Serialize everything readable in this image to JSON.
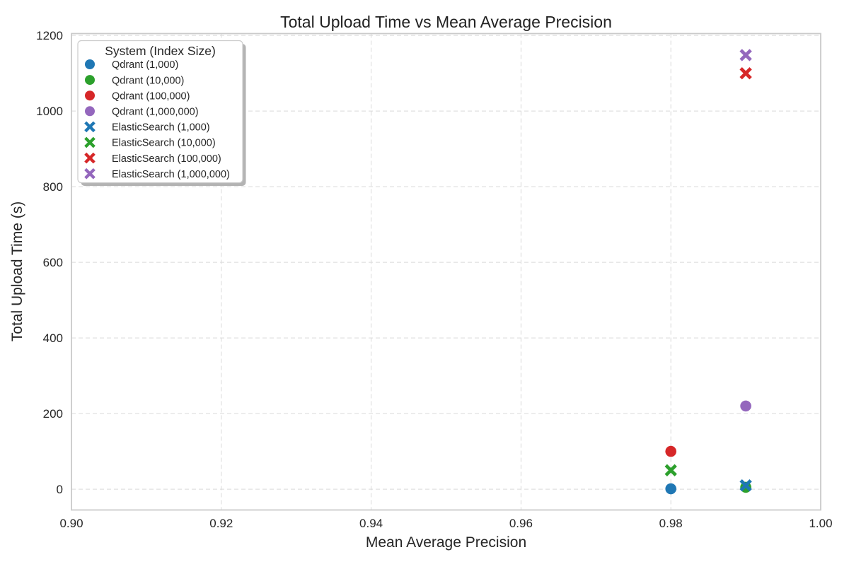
{
  "style": {
    "background": "#ffffff",
    "text_color": "#262626",
    "grid_color": "#d9d9d9",
    "spine_color": "#cacaca",
    "legend_border": "#cccccc",
    "legend_fill": "#ffffff",
    "legend_shadow": "#b3b3b3"
  },
  "chart_data": {
    "type": "scatter",
    "title": "Total Upload Time vs Mean Average Precision",
    "xlabel": "Mean Average Precision",
    "ylabel": "Total Upload Time (s)",
    "xlim": [
      0.9,
      1.0
    ],
    "ylim": [
      -55,
      1205
    ],
    "x_ticks": [
      0.9,
      0.92,
      0.94,
      0.96,
      0.98,
      1.0
    ],
    "x_tick_labels": [
      "0.90",
      "0.92",
      "0.94",
      "0.96",
      "0.98",
      "1.00"
    ],
    "y_ticks": [
      0,
      200,
      400,
      600,
      800,
      1000,
      1200
    ],
    "y_tick_labels": [
      "0",
      "200",
      "400",
      "600",
      "800",
      "1000",
      "1200"
    ],
    "grid": "on",
    "grid_linestyle": "dashed",
    "legend": {
      "title": "System (Index Size)",
      "position": "upper left"
    },
    "series": [
      {
        "name": "Qdrant (1,000)",
        "system": "Qdrant",
        "index_size": "1,000",
        "marker": "circle",
        "color": "#1f77b4",
        "points": [
          [
            0.98,
            1
          ]
        ]
      },
      {
        "name": "Qdrant (10,000)",
        "system": "Qdrant",
        "index_size": "10,000",
        "marker": "circle",
        "color": "#2ca02c",
        "points": [
          [
            0.99,
            5
          ]
        ]
      },
      {
        "name": "Qdrant (100,000)",
        "system": "Qdrant",
        "index_size": "100,000",
        "marker": "circle",
        "color": "#d62728",
        "points": [
          [
            0.98,
            100
          ]
        ]
      },
      {
        "name": "Qdrant (1,000,000)",
        "system": "Qdrant",
        "index_size": "1,000,000",
        "marker": "circle",
        "color": "#9467bd",
        "points": [
          [
            0.99,
            220
          ]
        ]
      },
      {
        "name": "ElasticSearch (1,000)",
        "system": "ElasticSearch",
        "index_size": "1,000",
        "marker": "x",
        "color": "#1f77b4",
        "points": [
          [
            0.99,
            10
          ]
        ]
      },
      {
        "name": "ElasticSearch (10,000)",
        "system": "ElasticSearch",
        "index_size": "10,000",
        "marker": "x",
        "color": "#2ca02c",
        "points": [
          [
            0.98,
            50
          ]
        ]
      },
      {
        "name": "ElasticSearch (100,000)",
        "system": "ElasticSearch",
        "index_size": "100,000",
        "marker": "x",
        "color": "#d62728",
        "points": [
          [
            0.99,
            1100
          ]
        ]
      },
      {
        "name": "ElasticSearch (1,000,000)",
        "system": "ElasticSearch",
        "index_size": "1,000,000",
        "marker": "x",
        "color": "#9467bd",
        "points": [
          [
            0.99,
            1148
          ]
        ]
      }
    ]
  }
}
